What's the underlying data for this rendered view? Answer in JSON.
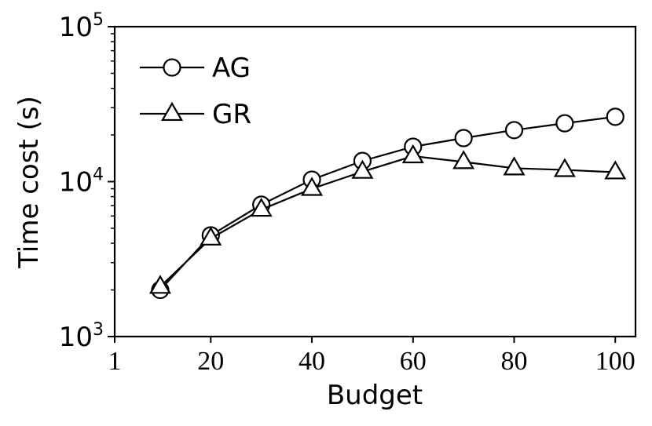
{
  "chart_data": {
    "type": "line",
    "xlabel": "Budget",
    "ylabel": "Time cost (s)",
    "yscale": "log",
    "ylim": [
      1000,
      100000
    ],
    "xlim": [
      1,
      104
    ],
    "xticks": [
      {
        "value": 1,
        "label": "1"
      },
      {
        "value": 20,
        "label": "20"
      },
      {
        "value": 40,
        "label": "40"
      },
      {
        "value": 60,
        "label": "60"
      },
      {
        "value": 80,
        "label": "80"
      },
      {
        "value": 100,
        "label": "100"
      }
    ],
    "yticks": [
      {
        "value": 1000,
        "base": "10",
        "exp": "3"
      },
      {
        "value": 10000,
        "base": "10",
        "exp": "4"
      },
      {
        "value": 100000,
        "base": "10",
        "exp": "5"
      }
    ],
    "legend_position": "top-left",
    "grid": false,
    "x": [
      10,
      20,
      30,
      40,
      50,
      60,
      70,
      80,
      90,
      100
    ],
    "series": [
      {
        "name": "AG",
        "marker": "circle",
        "color": "#000000",
        "values": [
          2000,
          4500,
          7100,
          10300,
          13600,
          16800,
          19100,
          21500,
          23800,
          26200
        ]
      },
      {
        "name": "GR",
        "marker": "triangle",
        "color": "#000000",
        "values": [
          2100,
          4300,
          6600,
          9000,
          11600,
          14600,
          13400,
          12200,
          11900,
          11500
        ]
      }
    ]
  }
}
